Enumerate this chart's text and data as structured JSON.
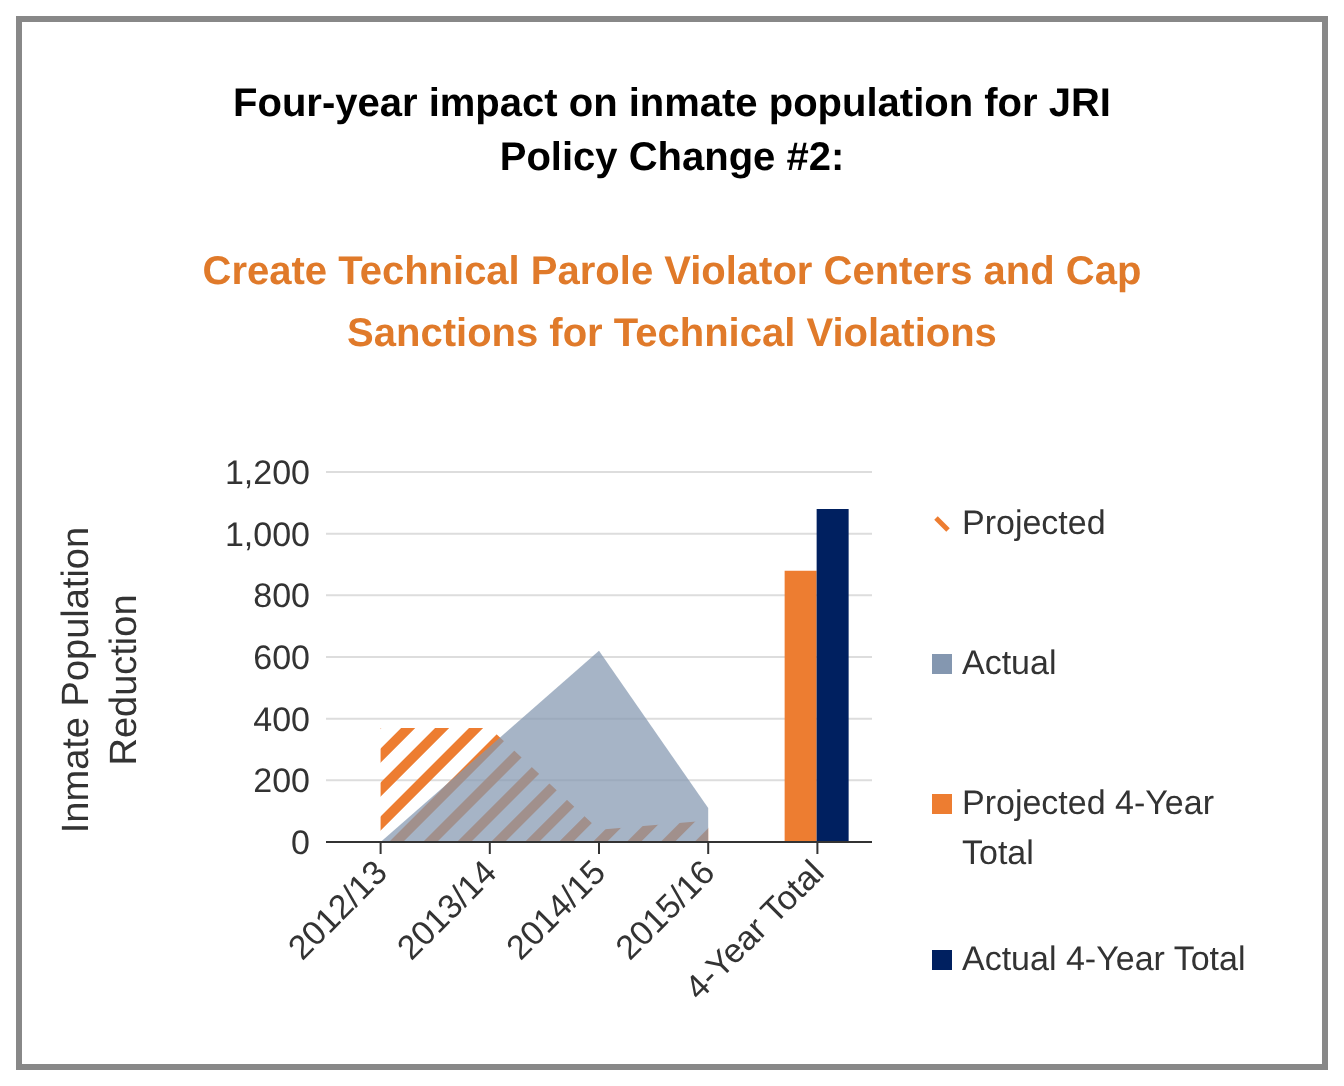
{
  "chart_data": {
    "type": "area",
    "title": "Four-year impact on inmate population for JRI Policy Change #2:",
    "subtitle": "Create Technical Parole Violator Centers and Cap Sanctions for Technical Violations",
    "ylabel": "Inmate Population Reduction",
    "categories": [
      "2012/13",
      "2013/14",
      "2014/15",
      "2015/16",
      "4-Year Total"
    ],
    "series": [
      {
        "name": "Projected",
        "color": "#ed7d31",
        "values": [
          370,
          370,
          40,
          70,
          null
        ]
      },
      {
        "name": "Actual",
        "color": "#8497b0",
        "values": [
          0,
          310,
          620,
          110,
          null
        ]
      },
      {
        "name": "Projected 4-Year Total",
        "type": "bar",
        "color": "#ed7d31",
        "values": [
          null,
          null,
          null,
          null,
          880
        ]
      },
      {
        "name": "Actual 4-Year Total",
        "type": "bar",
        "color": "#002060",
        "values": [
          null,
          null,
          null,
          null,
          1080
        ]
      }
    ],
    "ylim": [
      0,
      1200
    ],
    "yticks": [
      0,
      {
        "value": 200,
        "label": "200"
      },
      {
        "value": 400,
        "label": "400"
      },
      {
        "value": 600,
        "label": "600"
      },
      {
        "value": 800,
        "label": "800"
      },
      {
        "value": 1000,
        "label": "1,000"
      },
      {
        "value": 1200,
        "label": "1,200"
      }
    ],
    "grid": "y",
    "legend": "right"
  }
}
